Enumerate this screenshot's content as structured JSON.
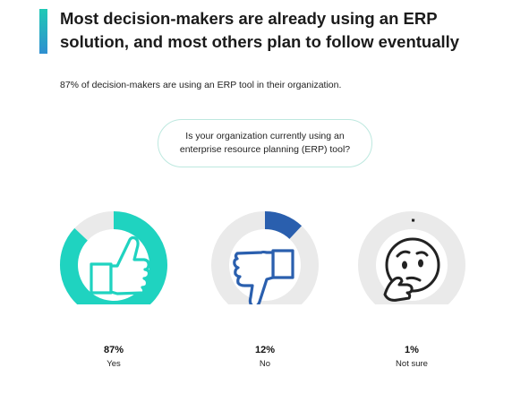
{
  "header": {
    "title": "Most decision-makers are already using an ERP solution, and most others plan to follow eventually",
    "subtitle": "87% of decision-makers are using an ERP tool in their organization."
  },
  "question": "Is your organization currently using an enterprise resource planning (ERP) tool?",
  "colors": {
    "yes": "#1fd3c0",
    "no": "#2a5fae",
    "not_sure": "#222222",
    "track": "#eaeaea"
  },
  "icons": [
    "thumbs-up-icon",
    "thumbs-down-icon",
    "thinking-face-icon"
  ],
  "chart_data": {
    "type": "pie",
    "style": "donut",
    "categories": [
      "Yes",
      "No",
      "Not sure"
    ],
    "values": [
      87,
      12,
      1
    ],
    "value_labels": [
      "87%",
      "12%",
      "1%"
    ]
  }
}
